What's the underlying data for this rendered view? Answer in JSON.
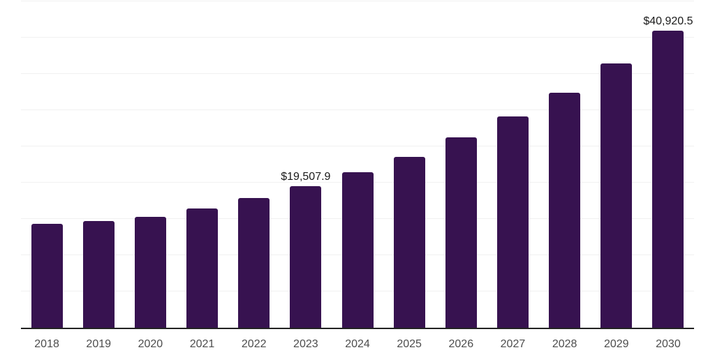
{
  "chart_data": {
    "type": "bar",
    "title": "",
    "xlabel": "",
    "ylabel": "",
    "categories": [
      "2018",
      "2019",
      "2020",
      "2021",
      "2022",
      "2023",
      "2024",
      "2025",
      "2026",
      "2027",
      "2028",
      "2029",
      "2030"
    ],
    "values": [
      14300,
      14700,
      15250,
      16400,
      17850,
      19507.9,
      21450,
      23600,
      26250,
      29100,
      32450,
      36400,
      40920.5
    ],
    "data_labels": [
      {
        "category": "2023",
        "text": "$19,507.9"
      },
      {
        "category": "2030",
        "text": "$40,920.5"
      }
    ],
    "ylim": [
      0,
      45000
    ],
    "gridline_step": 5000,
    "grid": "horizontal",
    "legend": "none",
    "y_tick_labels_shown": false,
    "colors": {
      "bar": "#371250",
      "gridline": "#f1f1f1",
      "axis_line": "#222222",
      "tick_label": "#4d4d4d",
      "data_label": "#1a1a1a",
      "background": "#ffffff"
    }
  }
}
